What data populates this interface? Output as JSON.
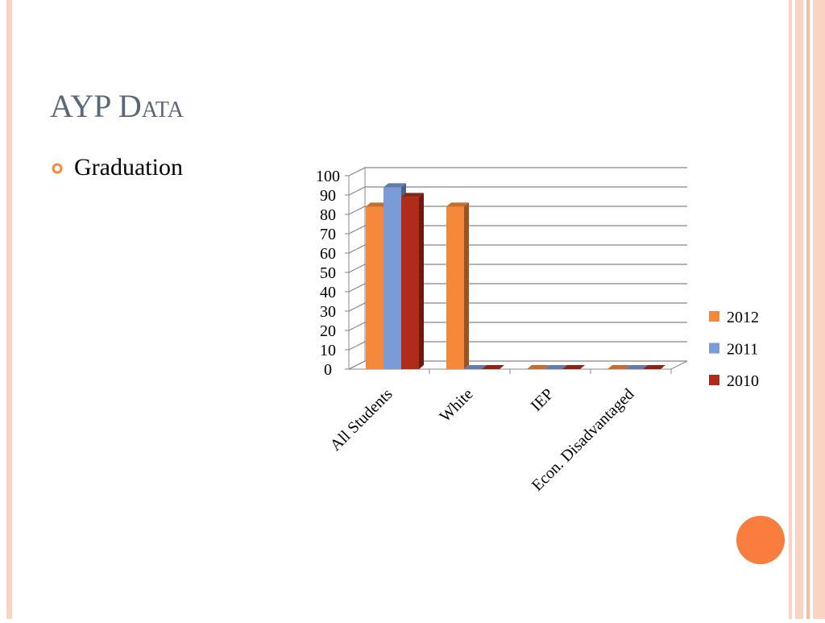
{
  "slide": {
    "title": "AYP Data",
    "bullet": "Graduation"
  },
  "chart_data": {
    "type": "bar3d",
    "categories": [
      "All Students",
      "White",
      "IEP",
      "Econ. Disadvantaged"
    ],
    "series": [
      {
        "name": "2012",
        "color": "#f6883a",
        "values": [
          84,
          84,
          0,
          0
        ]
      },
      {
        "name": "2011",
        "color": "#7b9bd6",
        "values": [
          94,
          0,
          0,
          0
        ]
      },
      {
        "name": "2010",
        "color": "#b02c1a",
        "values": [
          89,
          0,
          0,
          0
        ]
      }
    ],
    "ylim": [
      0,
      100
    ],
    "yticks": [
      0,
      10,
      20,
      30,
      40,
      50,
      60,
      70,
      80,
      90,
      100
    ],
    "grid": true,
    "legend": "right"
  }
}
